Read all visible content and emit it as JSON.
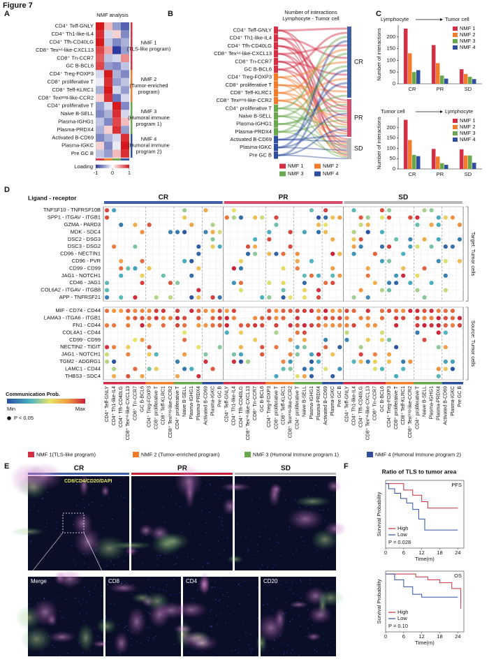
{
  "figure_title": "Figure 7",
  "panel_labels": [
    "A",
    "B",
    "C",
    "D",
    "E",
    "F"
  ],
  "nmf_colors": [
    "#d32f45",
    "#f07c2c",
    "#6aa84f",
    "#2f4e9e"
  ],
  "panel_a": {
    "title": "NMF analysis",
    "row_labels": [
      "CD4⁺ Teff-GNLY",
      "CD4⁺ Th1-like-IL4",
      "CD4⁺ Tfh-CD40LG",
      "CD8⁺ Texⁱⁿᵗ-like-CXCL13",
      "CD8⁺ Tn-CCR7",
      "GC B-BCL6",
      "CD4⁺ Treg-FOXP3",
      "CD8⁺ proliferative T",
      "CD8⁺ Teff-KLRC1",
      "CD8⁺ Texᵖʳᵒᵍ-like-CCR2",
      "CD4⁺ proliferative T",
      "Naive B-SELL",
      "Plasma-IGHG1",
      "Plasma-PRDX4",
      "Activated B-CD69",
      "Plasma-IGKC",
      "Pre GC B"
    ],
    "values": [
      [
        1,
        0.3,
        -0.5,
        -0.8
      ],
      [
        0.9,
        -0.2,
        0.2,
        -0.6
      ],
      [
        1,
        -0.3,
        -0.6,
        -0.4
      ],
      [
        0.8,
        0.4,
        -1,
        -0.5
      ],
      [
        0.7,
        -0.3,
        -0.2,
        0.5
      ],
      [
        0.8,
        -0.5,
        -0.6,
        -0.3
      ],
      [
        -0.2,
        1,
        -0.4,
        -0.6
      ],
      [
        -0.1,
        0.9,
        -0.5,
        -0.3
      ],
      [
        -0.4,
        1,
        -0.2,
        -0.5
      ],
      [
        0.2,
        0.9,
        -0.7,
        -0.2
      ],
      [
        -0.5,
        -0.2,
        1,
        -0.6
      ],
      [
        -0.6,
        -0.4,
        0.9,
        -0.2
      ],
      [
        -0.3,
        -0.6,
        0.8,
        0.3
      ],
      [
        -0.4,
        0.2,
        0.9,
        -0.5
      ],
      [
        -0.6,
        -0.4,
        -0.2,
        0.9
      ],
      [
        0.2,
        -0.6,
        -0.1,
        1
      ],
      [
        -0.3,
        -0.5,
        0.3,
        0.9
      ]
    ],
    "programs": [
      [
        "NMF 1",
        "(TLS-like program)"
      ],
      [
        "NMF 2",
        "(Tumor-enriched",
        "program)"
      ],
      [
        "NMF 3",
        "(Humoral immune",
        "program 1)"
      ],
      [
        "NMF 4",
        "(Humoral immune",
        "program 2)"
      ]
    ],
    "colorbar_label": "Loading",
    "colorbar_ticks": [
      -1,
      0,
      1
    ]
  },
  "panel_b": {
    "title_lines": [
      "Number of interactions",
      "Lymphocyte - Tumor cell"
    ],
    "targets": [
      "CR",
      "PR",
      "SD"
    ],
    "legend": [
      "NMF 1",
      "NMF 2",
      "NMF 3",
      "NMF 4"
    ]
  },
  "chart_data": [
    {
      "type": "bar",
      "title_from": "Lymphocyte",
      "title_to": "Tumor cell",
      "ylabel": "Number of interactions",
      "categories": [
        "CR",
        "PR",
        "SD"
      ],
      "ylim": [
        0,
        250
      ],
      "yticks": [
        0,
        50,
        100,
        150,
        200
      ],
      "series": [
        {
          "name": "NMF 1",
          "color": "#d32f45",
          "values": [
            235,
            165,
            62
          ]
        },
        {
          "name": "NMF 2",
          "color": "#f07c2c",
          "values": [
            130,
            88,
            42
          ]
        },
        {
          "name": "NMF 3",
          "color": "#6aa84f",
          "values": [
            50,
            35,
            30
          ]
        },
        {
          "name": "NMF 4",
          "color": "#2f4e9e",
          "values": [
            58,
            22,
            20
          ]
        }
      ]
    },
    {
      "type": "bar",
      "title_from": "Tumor cell",
      "title_to": "Lymphocyte",
      "ylabel": "Number of interactions",
      "categories": [
        "CR",
        "PR",
        "SD"
      ],
      "ylim": [
        0,
        250
      ],
      "yticks": [
        0,
        50,
        100,
        150,
        200
      ],
      "series": [
        {
          "name": "NMF 1",
          "color": "#d32f45",
          "values": [
            238,
            97,
            95
          ]
        },
        {
          "name": "NMF 2",
          "color": "#f07c2c",
          "values": [
            140,
            60,
            65
          ]
        },
        {
          "name": "NMF 3",
          "color": "#6aa84f",
          "values": [
            68,
            28,
            65
          ]
        },
        {
          "name": "NMF 4",
          "color": "#2f4e9e",
          "values": [
            62,
            20,
            30
          ]
        }
      ]
    },
    {
      "type": "step",
      "label": "PFS",
      "ylabel": "Survival Probability",
      "xlabel": "Time(m)",
      "annotation": "P = 0.028",
      "xlim": [
        0,
        26
      ],
      "xticks": [
        0,
        6,
        12,
        18,
        24
      ],
      "ylim": [
        0,
        1.05
      ],
      "series": [
        {
          "name": "High",
          "color": "#c62f3a",
          "x": [
            0,
            4,
            6,
            9,
            12,
            14,
            24
          ],
          "values": [
            1,
            1,
            0.9,
            0.82,
            0.72,
            0.62,
            0.62
          ]
        },
        {
          "name": "Low",
          "color": "#2f4e9e",
          "x": [
            0,
            1,
            3,
            5,
            7,
            9,
            11,
            13,
            24
          ],
          "values": [
            1,
            0.92,
            0.85,
            0.77,
            0.7,
            0.6,
            0.45,
            0.28,
            0.28
          ]
        }
      ]
    },
    {
      "type": "step",
      "label": "OS",
      "ylabel": "Survival Probability",
      "xlabel": "Time(m)",
      "annotation": "P = 0.10",
      "xlim": [
        0,
        26
      ],
      "xticks": [
        0,
        6,
        12,
        18,
        24
      ],
      "ylim": [
        0,
        1.05
      ],
      "series": [
        {
          "name": "High",
          "color": "#c62f3a",
          "x": [
            0,
            5,
            10,
            14,
            18,
            22,
            25
          ],
          "values": [
            1,
            1,
            0.95,
            0.9,
            0.85,
            0.75,
            0.4
          ]
        },
        {
          "name": "Low",
          "color": "#2f4e9e",
          "x": [
            0,
            3,
            6,
            9,
            12,
            24
          ],
          "values": [
            1,
            0.9,
            0.78,
            0.65,
            0.6,
            0.6
          ]
        }
      ]
    }
  ],
  "panel_d": {
    "header": "Ligand - receptor",
    "conditions": [
      "CR",
      "PR",
      "SD"
    ],
    "target_rows": [
      "TNFSF10 - TNFRSF10B",
      "SPP1 - ITGAV - ITGB1",
      "GZMA - PARD3",
      "MDK - SDC4",
      "DSC2 - DSG3",
      "DSC3 - DSG2",
      "CD96 - NECTIN1",
      "CD96 - PVR",
      "CD99 - CD99",
      "JAG1 - NOTCH1",
      "CD46 - JAG1",
      "COL6A2 - ITGAV - ITGB8",
      "APP - TNFRSF21"
    ],
    "source_rows": [
      "MIF - CD74 - CD44",
      "LAMA3 - ITGA6 - ITGB1",
      "FN1 - CD44",
      "COL4A1 - CD44",
      "CD99 - CD99",
      "NECTIN2 - TIGIT",
      "JAG1 - NOTCH1",
      "TGM2 - ADGRG1",
      "LAMC1 - CD44",
      "THBS3 - SDC4"
    ],
    "target_label": "Target: Tumor cells",
    "source_label": "Source: Tumor cells",
    "legend_title": "Communication Prob.",
    "legend_min": "Min",
    "legend_max": "Max",
    "legend_p": "P < 0.05"
  },
  "legend_programs": [
    "NMF 1(TLS-like program)",
    "NMF 2 (Tumor-enriched program)",
    "NMF 3 (Humoral immune program 1)",
    "NMF 4 (Humoral immune program 2)"
  ],
  "panel_e": {
    "conditions": [
      "CR",
      "PR",
      "SD"
    ],
    "stain": "CD8/CD4/CD20/DAPI",
    "zoom_labels": [
      "Merge",
      "CD8",
      "CD4",
      "CD20"
    ]
  },
  "panel_f_title": "Ratio of TLS to tumor area"
}
